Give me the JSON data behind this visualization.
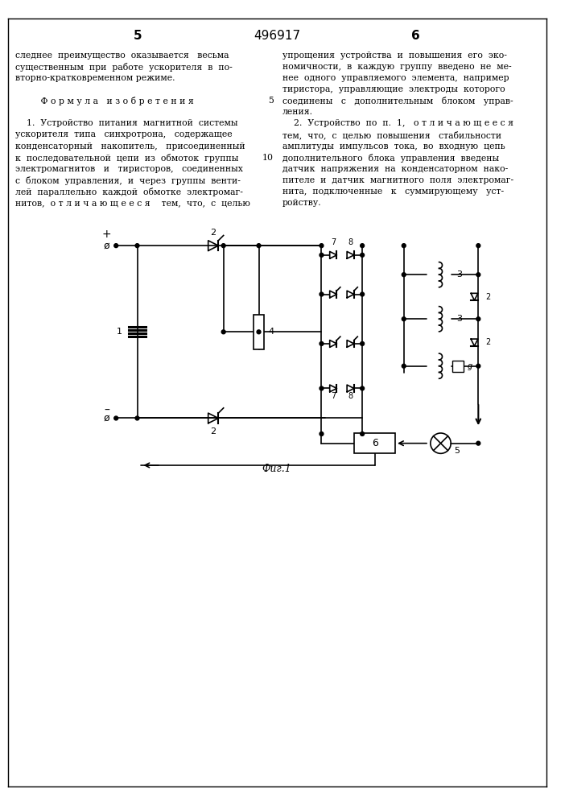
{
  "page_num_left": "5",
  "page_num_right": "6",
  "patent_num": "496917",
  "text_left": [
    "следнее  преимущество  оказывается   весьма",
    "существенным  при  работе  ускорителя  в  по-",
    "вторно-кратковременном режиме.",
    "",
    "         Ф о р м у л а   и з о б р е т е н и я",
    "",
    "    1.  Устройство  питания  магнитной  системы",
    "ускорителя  типа   синхротрона,   содержащее",
    "конденсаторный   накопитель,   присоединенный",
    "к  последовательной  цепи  из  обмоток  группы",
    "электромагнитов   и   тиристоров,   соединенных",
    "с  блоком  управления,  и  через  группы  венти-",
    "лей  параллельно  каждой  обмотке  электромаг-",
    "нитов,  о т л и ч а ю щ е е с я    тем,  что,  с  целью"
  ],
  "text_right": [
    "упрощения  устройства  и  повышения  его  эко-",
    "номичности,  в  каждую  группу  введено  не  ме-",
    "нее  одного  управляемого  элемента,  например",
    "тиристора,  управляющие  электроды  которого",
    "соединены   с   дополнительным   блоком   управ-",
    "ления.",
    "    2.  Устройство  по  п.  1,   о т л и ч а ю щ е е с я",
    "тем,  что,  с  целью  повышения   стабильности",
    "амплитуды  импульсов  тока,  во  входную  цепь",
    "дополнительного  блока  управления  введены",
    "датчик  напряжения  на  конденсаторном  нако-",
    "пителе  и  датчик  магнитного  поля  электромаг-",
    "нита,  подключенные   к   суммирующему   уст-",
    "ройству."
  ],
  "fig_caption": "Фиг.1",
  "background_color": "#ffffff",
  "text_color": "#000000",
  "line_color": "#000000"
}
